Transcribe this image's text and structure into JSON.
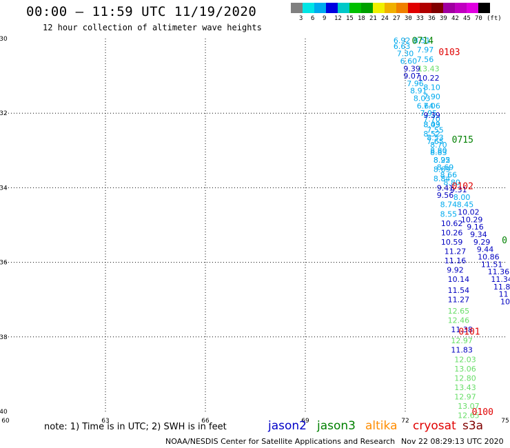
{
  "header": {
    "title": "00:00 – 11:59 UTC 11/19/2020",
    "subtitle": "12 hour collection of altimeter wave heights"
  },
  "colorbar": {
    "colors": [
      "#808080",
      "#00e5e5",
      "#00aaee",
      "#0000e0",
      "#00c8c8",
      "#00c000",
      "#00a000",
      "#f0f000",
      "#f0b000",
      "#f08000",
      "#e00000",
      "#b00000",
      "#800000",
      "#a000a0",
      "#c000c0",
      "#e000e0",
      "#000000"
    ],
    "ticks": [
      "3",
      "6",
      "9",
      "12",
      "15",
      "18",
      "21",
      "24",
      "27",
      "30",
      "33",
      "36",
      "39",
      "42",
      "45",
      "70",
      "(ft)"
    ]
  },
  "note": "note: 1) Time is in UTC; 2) SWH is in feet",
  "legend": [
    {
      "name": "jason2",
      "color": "#0000c8"
    },
    {
      "name": "jason3",
      "color": "#008000"
    },
    {
      "name": "altika",
      "color": "#ff8c00"
    },
    {
      "name": "cryosat",
      "color": "#e00000"
    },
    {
      "name": "s3a",
      "color": "#800000"
    }
  ],
  "footer": {
    "left": "NOAA/NESDIS Center for Satellite Applications and Research",
    "right": "Nov 22 08:29:13 UTC 2020"
  },
  "chart_data": {
    "type": "scatter",
    "xlim": [
      60,
      75
    ],
    "ylim": [
      -40,
      -30
    ],
    "xticks": [
      "60",
      "63",
      "66",
      "69",
      "72",
      "75"
    ],
    "yticks": [
      "-30",
      "-32",
      "-34",
      "-36",
      "-38",
      "-40"
    ],
    "grid": true,
    "time_labels": [
      {
        "text": "0714",
        "x": 72.2,
        "y": -30.05,
        "color": "#008000"
      },
      {
        "text": "0103",
        "x": 73.0,
        "y": -30.35,
        "color": "#e00000"
      },
      {
        "text": "0715",
        "x": 73.4,
        "y": -32.7,
        "color": "#008000"
      },
      {
        "text": "0102",
        "x": 73.4,
        "y": -33.95,
        "color": "#e00000"
      },
      {
        "text": "0",
        "x": 74.9,
        "y": -35.4,
        "color": "#008000"
      },
      {
        "text": "0101",
        "x": 73.6,
        "y": -37.85,
        "color": "#e00000"
      },
      {
        "text": "0100",
        "x": 74.0,
        "y": -40.0,
        "color": "#e00000"
      }
    ],
    "series": [
      {
        "name": "jason3",
        "points": [
          {
            "x": 71.9,
            "y": -30.05,
            "v": "6.92",
            "c": "#00aaee"
          },
          {
            "x": 71.9,
            "y": -30.2,
            "v": "6.63",
            "c": "#00aaee"
          },
          {
            "x": 72.0,
            "y": -30.4,
            "v": "7.30",
            "c": "#00aaee"
          },
          {
            "x": 72.1,
            "y": -30.6,
            "v": "6.60",
            "c": "#00aaee"
          },
          {
            "x": 72.2,
            "y": -30.8,
            "v": "9.39",
            "c": "#0000c0"
          },
          {
            "x": 72.2,
            "y": -31.0,
            "v": "9.07",
            "c": "#0000c0"
          },
          {
            "x": 72.3,
            "y": -31.2,
            "v": "7.96",
            "c": "#00aaee"
          },
          {
            "x": 72.4,
            "y": -31.4,
            "v": "8.91",
            "c": "#00aaee"
          },
          {
            "x": 72.5,
            "y": -31.6,
            "v": "8.03",
            "c": "#00aaee"
          },
          {
            "x": 72.6,
            "y": -31.8,
            "v": "6.64",
            "c": "#00aaee"
          },
          {
            "x": 72.7,
            "y": -32.0,
            "v": "7.95",
            "c": "#00aaee"
          },
          {
            "x": 72.8,
            "y": -32.15,
            "v": "7.70",
            "c": "#00aaee"
          },
          {
            "x": 72.8,
            "y": -32.3,
            "v": "8.09",
            "c": "#00aaee"
          },
          {
            "x": 72.9,
            "y": -32.45,
            "v": "7.55",
            "c": "#00aaee"
          },
          {
            "x": 72.9,
            "y": -32.65,
            "v": "8.53",
            "c": "#00aaee"
          },
          {
            "x": 73.0,
            "y": -32.85,
            "v": "8.70",
            "c": "#00aaee"
          },
          {
            "x": 73.0,
            "y": -33.05,
            "v": "8.83",
            "c": "#00aaee"
          },
          {
            "x": 73.1,
            "y": -33.25,
            "v": "8.95",
            "c": "#00aaee"
          },
          {
            "x": 73.1,
            "y": -33.5,
            "v": "8.69",
            "c": "#00aaee"
          },
          {
            "x": 73.1,
            "y": -33.75,
            "v": "8.84",
            "c": "#00aaee"
          },
          {
            "x": 73.2,
            "y": -34.0,
            "v": "9.41",
            "c": "#0000c0"
          },
          {
            "x": 73.2,
            "y": -34.2,
            "v": "9.56",
            "c": "#0000c0"
          },
          {
            "x": 73.3,
            "y": -34.45,
            "v": "8.74",
            "c": "#00aaee"
          },
          {
            "x": 73.3,
            "y": -34.7,
            "v": "8.55",
            "c": "#00aaee"
          },
          {
            "x": 73.4,
            "y": -34.95,
            "v": "10.62",
            "c": "#0000c0"
          },
          {
            "x": 73.4,
            "y": -35.2,
            "v": "10.26",
            "c": "#0000c0"
          },
          {
            "x": 73.4,
            "y": -35.45,
            "v": "10.59",
            "c": "#0000c0"
          },
          {
            "x": 73.5,
            "y": -35.7,
            "v": "11.27",
            "c": "#0000c0"
          },
          {
            "x": 73.5,
            "y": -35.95,
            "v": "11.16",
            "c": "#0000c0"
          },
          {
            "x": 73.5,
            "y": -36.2,
            "v": "9.92",
            "c": "#0000c0"
          },
          {
            "x": 73.6,
            "y": -36.45,
            "v": "10.14",
            "c": "#0000c0"
          },
          {
            "x": 73.6,
            "y": -36.75,
            "v": "11.54",
            "c": "#0000c0"
          },
          {
            "x": 73.6,
            "y": -37.0,
            "v": "11.27",
            "c": "#0000c0"
          },
          {
            "x": 73.6,
            "y": -37.3,
            "v": "12.65",
            "c": "#66dd66"
          },
          {
            "x": 73.6,
            "y": -37.55,
            "v": "12.46",
            "c": "#66dd66"
          },
          {
            "x": 73.7,
            "y": -37.8,
            "v": "11.38",
            "c": "#0000c0"
          },
          {
            "x": 73.7,
            "y": -38.1,
            "v": "12.97",
            "c": "#66dd66"
          },
          {
            "x": 73.7,
            "y": -38.35,
            "v": "11.83",
            "c": "#0000c0"
          },
          {
            "x": 73.8,
            "y": -38.6,
            "v": "12.03",
            "c": "#66dd66"
          },
          {
            "x": 73.8,
            "y": -38.85,
            "v": "13.06",
            "c": "#66dd66"
          },
          {
            "x": 73.8,
            "y": -39.1,
            "v": "12.80",
            "c": "#66dd66"
          },
          {
            "x": 73.8,
            "y": -39.35,
            "v": "13.43",
            "c": "#66dd66"
          },
          {
            "x": 73.8,
            "y": -39.6,
            "v": "12.97",
            "c": "#66dd66"
          },
          {
            "x": 73.9,
            "y": -39.85,
            "v": "13.07",
            "c": "#66dd66"
          },
          {
            "x": 73.9,
            "y": -40.1,
            "v": "12.65",
            "c": "#66dd66"
          }
        ]
      },
      {
        "name": "cryosat",
        "points": [
          {
            "x": 72.5,
            "y": -30.05,
            "v": "8.51",
            "c": "#00aaee"
          },
          {
            "x": 72.6,
            "y": -30.3,
            "v": "7.97",
            "c": "#00aaee"
          },
          {
            "x": 72.6,
            "y": -30.55,
            "v": "7.56",
            "c": "#00aaee"
          },
          {
            "x": 72.7,
            "y": -30.8,
            "v": "13.43",
            "c": "#66dd66"
          },
          {
            "x": 72.7,
            "y": -31.05,
            "v": "10.22",
            "c": "#0000c0"
          },
          {
            "x": 72.8,
            "y": -31.3,
            "v": "8.10",
            "c": "#00aaee"
          },
          {
            "x": 72.8,
            "y": -31.55,
            "v": "7.90",
            "c": "#00aaee"
          },
          {
            "x": 72.8,
            "y": -31.8,
            "v": "7.06",
            "c": "#00aaee"
          },
          {
            "x": 72.8,
            "y": -32.05,
            "v": "9.39",
            "c": "#0000c0"
          },
          {
            "x": 72.8,
            "y": -32.3,
            "v": "8.43",
            "c": "#00aaee"
          },
          {
            "x": 72.8,
            "y": -32.55,
            "v": "8.52",
            "c": "#00aaee"
          },
          {
            "x": 72.9,
            "y": -32.75,
            "v": "7.65",
            "c": "#00aaee"
          },
          {
            "x": 73.0,
            "y": -33.0,
            "v": "8.80",
            "c": "#00aaee"
          },
          {
            "x": 73.1,
            "y": -33.25,
            "v": "8.22",
            "c": "#00aaee"
          },
          {
            "x": 73.2,
            "y": -33.45,
            "v": "8.69",
            "c": "#00aaee"
          },
          {
            "x": 73.3,
            "y": -33.65,
            "v": "8.66",
            "c": "#00aaee"
          },
          {
            "x": 73.4,
            "y": -33.85,
            "v": "8.80",
            "c": "#00aaee"
          },
          {
            "x": 73.6,
            "y": -34.05,
            "v": "9.31",
            "c": "#0000c0"
          },
          {
            "x": 73.7,
            "y": -34.25,
            "v": "8.00",
            "c": "#00aaee"
          },
          {
            "x": 73.8,
            "y": -34.45,
            "v": "8.45",
            "c": "#00aaee"
          },
          {
            "x": 73.9,
            "y": -34.65,
            "v": "10.02",
            "c": "#0000c0"
          },
          {
            "x": 74.0,
            "y": -34.85,
            "v": "10.29",
            "c": "#0000c0"
          },
          {
            "x": 74.1,
            "y": -35.05,
            "v": "9.16",
            "c": "#0000c0"
          },
          {
            "x": 74.2,
            "y": -35.25,
            "v": "9.34",
            "c": "#0000c0"
          },
          {
            "x": 74.3,
            "y": -35.45,
            "v": "9.29",
            "c": "#0000c0"
          },
          {
            "x": 74.4,
            "y": -35.65,
            "v": "9.44",
            "c": "#0000c0"
          },
          {
            "x": 74.5,
            "y": -35.85,
            "v": "10.86",
            "c": "#0000c0"
          },
          {
            "x": 74.6,
            "y": -36.05,
            "v": "11.51",
            "c": "#0000c0"
          },
          {
            "x": 74.8,
            "y": -36.25,
            "v": "11.36",
            "c": "#0000c0"
          },
          {
            "x": 74.9,
            "y": -36.45,
            "v": "11.34",
            "c": "#0000c0"
          },
          {
            "x": 74.9,
            "y": -36.65,
            "v": "11.8",
            "c": "#0000c0"
          },
          {
            "x": 74.95,
            "y": -36.85,
            "v": "11",
            "c": "#0000c0"
          },
          {
            "x": 75.0,
            "y": -37.05,
            "v": "10",
            "c": "#0000c0"
          }
        ]
      }
    ]
  }
}
